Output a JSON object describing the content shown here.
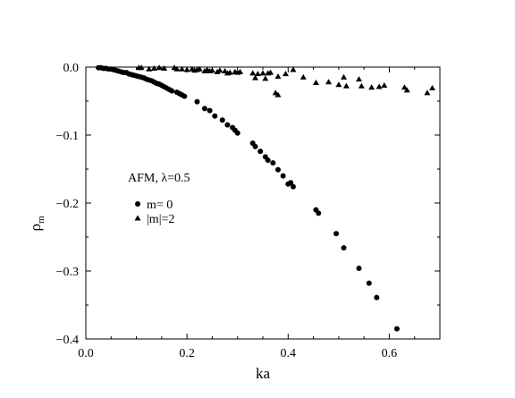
{
  "chart_data": {
    "type": "scatter",
    "xlabel": "ka",
    "ylabel_main": "ρ",
    "ylabel_sub": "m",
    "xlim": [
      0.0,
      0.7
    ],
    "ylim": [
      -0.4,
      0.0
    ],
    "xticks": [
      0.0,
      0.2,
      0.4,
      0.6
    ],
    "xtick_labels": [
      "0.0",
      "0.2",
      "0.4",
      "0.6"
    ],
    "yticks": [
      0.0,
      -0.1,
      -0.2,
      -0.3,
      -0.4
    ],
    "ytick_labels": [
      "0.0",
      "−0.1",
      "−0.2",
      "−0.3",
      "−0.4"
    ],
    "grid": false,
    "annotation": "AFM, λ=0.5",
    "legend_placement": "middle-left",
    "series": [
      {
        "name": "m= 0",
        "marker": "circle",
        "points": [
          [
            0.025,
            -0.001
          ],
          [
            0.03,
            -0.001
          ],
          [
            0.035,
            -0.002
          ],
          [
            0.04,
            -0.002
          ],
          [
            0.045,
            -0.003
          ],
          [
            0.05,
            -0.003
          ],
          [
            0.055,
            -0.004
          ],
          [
            0.06,
            -0.005
          ],
          [
            0.065,
            -0.006
          ],
          [
            0.07,
            -0.007
          ],
          [
            0.075,
            -0.008
          ],
          [
            0.08,
            -0.008
          ],
          [
            0.085,
            -0.01
          ],
          [
            0.09,
            -0.011
          ],
          [
            0.095,
            -0.012
          ],
          [
            0.1,
            -0.013
          ],
          [
            0.105,
            -0.014
          ],
          [
            0.11,
            -0.015
          ],
          [
            0.115,
            -0.016
          ],
          [
            0.12,
            -0.018
          ],
          [
            0.125,
            -0.019
          ],
          [
            0.13,
            -0.02
          ],
          [
            0.135,
            -0.022
          ],
          [
            0.14,
            -0.024
          ],
          [
            0.145,
            -0.025
          ],
          [
            0.15,
            -0.027
          ],
          [
            0.155,
            -0.029
          ],
          [
            0.16,
            -0.031
          ],
          [
            0.165,
            -0.033
          ],
          [
            0.17,
            -0.035
          ],
          [
            0.18,
            -0.037
          ],
          [
            0.185,
            -0.039
          ],
          [
            0.19,
            -0.041
          ],
          [
            0.195,
            -0.043
          ],
          [
            0.22,
            -0.051
          ],
          [
            0.235,
            -0.061
          ],
          [
            0.245,
            -0.064
          ],
          [
            0.255,
            -0.072
          ],
          [
            0.27,
            -0.078
          ],
          [
            0.28,
            -0.085
          ],
          [
            0.29,
            -0.089
          ],
          [
            0.295,
            -0.093
          ],
          [
            0.3,
            -0.097
          ],
          [
            0.33,
            -0.112
          ],
          [
            0.335,
            -0.117
          ],
          [
            0.345,
            -0.124
          ],
          [
            0.355,
            -0.132
          ],
          [
            0.36,
            -0.137
          ],
          [
            0.37,
            -0.141
          ],
          [
            0.38,
            -0.151
          ],
          [
            0.39,
            -0.16
          ],
          [
            0.4,
            -0.172
          ],
          [
            0.405,
            -0.17
          ],
          [
            0.41,
            -0.176
          ],
          [
            0.455,
            -0.21
          ],
          [
            0.46,
            -0.215
          ],
          [
            0.495,
            -0.245
          ],
          [
            0.51,
            -0.266
          ],
          [
            0.54,
            -0.296
          ],
          [
            0.56,
            -0.318
          ],
          [
            0.575,
            -0.339
          ],
          [
            0.615,
            -0.385
          ]
        ]
      },
      {
        "name": "|m|=2",
        "marker": "triangle",
        "points": [
          [
            0.105,
            -0.001
          ],
          [
            0.11,
            -0.001
          ],
          [
            0.125,
            -0.003
          ],
          [
            0.135,
            -0.002
          ],
          [
            0.145,
            -0.001
          ],
          [
            0.155,
            -0.002
          ],
          [
            0.175,
            -0.001
          ],
          [
            0.18,
            -0.003
          ],
          [
            0.19,
            -0.003
          ],
          [
            0.2,
            -0.004
          ],
          [
            0.21,
            -0.003
          ],
          [
            0.215,
            -0.005
          ],
          [
            0.22,
            -0.004
          ],
          [
            0.225,
            -0.003
          ],
          [
            0.235,
            -0.006
          ],
          [
            0.24,
            -0.004
          ],
          [
            0.245,
            -0.006
          ],
          [
            0.25,
            -0.005
          ],
          [
            0.26,
            -0.007
          ],
          [
            0.265,
            -0.005
          ],
          [
            0.275,
            -0.006
          ],
          [
            0.28,
            -0.009
          ],
          [
            0.285,
            -0.008
          ],
          [
            0.295,
            -0.007
          ],
          [
            0.3,
            -0.008
          ],
          [
            0.305,
            -0.007
          ],
          [
            0.33,
            -0.009
          ],
          [
            0.335,
            -0.016
          ],
          [
            0.34,
            -0.01
          ],
          [
            0.35,
            -0.009
          ],
          [
            0.355,
            -0.017
          ],
          [
            0.36,
            -0.009
          ],
          [
            0.365,
            -0.008
          ],
          [
            0.375,
            -0.038
          ],
          [
            0.38,
            -0.041
          ],
          [
            0.38,
            -0.014
          ],
          [
            0.395,
            -0.01
          ],
          [
            0.41,
            -0.004
          ],
          [
            0.43,
            -0.015
          ],
          [
            0.455,
            -0.023
          ],
          [
            0.48,
            -0.022
          ],
          [
            0.5,
            -0.026
          ],
          [
            0.51,
            -0.015
          ],
          [
            0.515,
            -0.028
          ],
          [
            0.54,
            -0.018
          ],
          [
            0.545,
            -0.028
          ],
          [
            0.565,
            -0.03
          ],
          [
            0.58,
            -0.029
          ],
          [
            0.59,
            -0.027
          ],
          [
            0.63,
            -0.03
          ],
          [
            0.635,
            -0.034
          ],
          [
            0.675,
            -0.038
          ],
          [
            0.685,
            -0.031
          ]
        ]
      }
    ]
  }
}
